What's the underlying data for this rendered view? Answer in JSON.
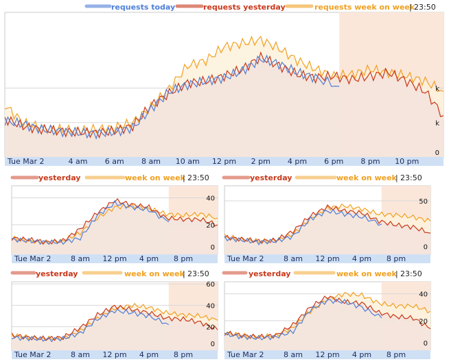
{
  "colors": {
    "today": "#4f7fd8",
    "yesterday": "#c8381a",
    "week": "#f0a020",
    "yesterday_fill": "#f3e3dc",
    "week_fill": "#fdf1dc",
    "future_fill": "#fbe7da",
    "axis_bar": "#cfe0f5",
    "grid": "#d8d8d8",
    "frame": "#c8c8c8"
  },
  "main_legend": {
    "today": "requests today",
    "yesterday": "requests yesterday",
    "week": "requests week on week",
    "time": "23:50"
  },
  "small_legend": {
    "yesterday": "yesterday",
    "week": "week on week",
    "time": "23:50"
  },
  "chart_data": [
    {
      "type": "line",
      "id": "main",
      "x_tick_labels": [
        "Tue Mar 2",
        "4 am",
        "6 am",
        "8 am",
        "10 am",
        "12 pm",
        "2 pm",
        "4 pm",
        "6 pm",
        "8 pm",
        "10 pm"
      ],
      "x_tick_hours": [
        0,
        4,
        6,
        8,
        10,
        12,
        14,
        16,
        18,
        20,
        22
      ],
      "y_tick_labels": [
        "0",
        "k",
        "k"
      ],
      "y_tick_values": [
        0,
        1,
        2
      ],
      "ylim": [
        0,
        4.2
      ],
      "xlim": [
        0,
        24
      ],
      "now_hour": 18.3,
      "series": [
        {
          "key": "today",
          "name": "requests today",
          "x": [
            0,
            1,
            2,
            3,
            4,
            5,
            6,
            7,
            8,
            9,
            10,
            11,
            12,
            13,
            14,
            15,
            16,
            17,
            18.3
          ],
          "y": [
            1.05,
            0.95,
            0.8,
            0.75,
            0.7,
            0.68,
            0.72,
            0.85,
            1.4,
            1.9,
            2.1,
            2.2,
            2.3,
            2.5,
            2.85,
            2.7,
            2.45,
            2.3,
            2.05
          ]
        },
        {
          "key": "yesterday",
          "name": "requests yesterday",
          "x": [
            0,
            1,
            2,
            3,
            4,
            5,
            6,
            7,
            8,
            9,
            10,
            11,
            12,
            13,
            14,
            15,
            16,
            17,
            18,
            19,
            20,
            21,
            22,
            23,
            24
          ],
          "y": [
            1.1,
            0.9,
            0.8,
            0.75,
            0.72,
            0.7,
            0.75,
            0.9,
            1.5,
            1.85,
            2.15,
            2.2,
            2.35,
            2.55,
            2.9,
            2.65,
            2.4,
            2.3,
            2.35,
            2.25,
            2.35,
            2.45,
            2.2,
            1.9,
            1.2
          ]
        },
        {
          "key": "week",
          "name": "requests week on week",
          "x": [
            0,
            1,
            2,
            3,
            4,
            5,
            6,
            7,
            8,
            9,
            10,
            11,
            12,
            13,
            14,
            15,
            16,
            17,
            18,
            19,
            20,
            21,
            22,
            23,
            24
          ],
          "y": [
            1.5,
            1.0,
            0.85,
            0.8,
            0.78,
            0.8,
            0.85,
            1.0,
            1.45,
            2.0,
            2.65,
            2.8,
            3.2,
            3.3,
            3.4,
            3.15,
            2.8,
            2.55,
            2.35,
            2.4,
            2.55,
            2.45,
            2.35,
            2.2,
            1.9
          ]
        }
      ]
    },
    {
      "type": "line",
      "id": "small-1",
      "x_tick_labels": [
        "Tue Mar 2",
        "8 am",
        "12 pm",
        "4 pm",
        "8 pm"
      ],
      "x_tick_hours": [
        0,
        8,
        12,
        16,
        20
      ],
      "y_tick_labels": [
        "0",
        "20",
        "40"
      ],
      "y_tick_values": [
        0,
        20,
        40
      ],
      "ylim": [
        -2,
        49
      ],
      "xlim": [
        0,
        24
      ],
      "now_hour": 18.3,
      "series": [
        {
          "key": "today",
          "x": [
            0,
            2,
            4,
            6,
            8,
            10,
            12,
            14,
            16,
            18.3
          ],
          "y": [
            9,
            8,
            7,
            7,
            10,
            27,
            36,
            33,
            31,
            22
          ]
        },
        {
          "key": "yesterday",
          "x": [
            0,
            2,
            4,
            6,
            8,
            10,
            12,
            14,
            16,
            18,
            20,
            22,
            24
          ],
          "y": [
            10,
            9,
            7,
            8,
            17,
            29,
            38,
            35,
            33,
            25,
            24,
            24,
            20
          ]
        },
        {
          "key": "week",
          "x": [
            0,
            2,
            4,
            6,
            8,
            10,
            12,
            14,
            16,
            18,
            20,
            22,
            24
          ],
          "y": [
            10,
            8,
            7,
            8,
            14,
            25,
            33,
            34,
            32,
            28,
            27,
            28,
            25
          ]
        }
      ]
    },
    {
      "type": "line",
      "id": "small-2",
      "x_tick_labels": [
        "Tue Mar 2",
        "8 am",
        "12 pm",
        "4 pm",
        "8 pm"
      ],
      "x_tick_hours": [
        0,
        8,
        12,
        16,
        20
      ],
      "y_tick_labels": [
        "0",
        "50"
      ],
      "y_tick_values": [
        0,
        50
      ],
      "ylim": [
        -3,
        65
      ],
      "xlim": [
        0,
        24
      ],
      "now_hour": 18.3,
      "series": [
        {
          "key": "today",
          "x": [
            0,
            2,
            4,
            6,
            8,
            10,
            12,
            14,
            16,
            18.3
          ],
          "y": [
            13,
            11,
            9,
            10,
            15,
            32,
            40,
            37,
            34,
            27
          ]
        },
        {
          "key": "yesterday",
          "x": [
            0,
            2,
            4,
            6,
            8,
            10,
            12,
            14,
            16,
            18,
            20,
            22,
            24
          ],
          "y": [
            14,
            12,
            10,
            11,
            20,
            35,
            44,
            40,
            38,
            30,
            26,
            24,
            18
          ]
        },
        {
          "key": "week",
          "x": [
            0,
            2,
            4,
            6,
            8,
            10,
            12,
            14,
            16,
            18,
            20,
            22,
            24
          ],
          "y": [
            15,
            12,
            10,
            11,
            17,
            32,
            43,
            45,
            42,
            37,
            36,
            34,
            30
          ]
        }
      ]
    },
    {
      "type": "line",
      "id": "small-3",
      "x_tick_labels": [
        "Tue Mar 2",
        "8 am",
        "12 pm",
        "4 pm",
        "8 pm"
      ],
      "x_tick_hours": [
        0,
        8,
        12,
        16,
        20
      ],
      "y_tick_labels": [
        "0",
        "20",
        "40",
        "60"
      ],
      "y_tick_values": [
        0,
        20,
        40,
        60
      ],
      "ylim": [
        -2,
        62
      ],
      "xlim": [
        0,
        24
      ],
      "now_hour": 18.3,
      "series": [
        {
          "key": "today",
          "x": [
            0,
            2,
            4,
            6,
            8,
            10,
            12,
            14,
            16,
            18.3
          ],
          "y": [
            10,
            9,
            8,
            9,
            14,
            27,
            35,
            33,
            30,
            22
          ]
        },
        {
          "key": "yesterday",
          "x": [
            0,
            2,
            4,
            6,
            8,
            10,
            12,
            14,
            16,
            18,
            20,
            22,
            24
          ],
          "y": [
            12,
            10,
            9,
            10,
            19,
            31,
            39,
            36,
            33,
            28,
            27,
            24,
            17
          ]
        },
        {
          "key": "week",
          "x": [
            0,
            2,
            4,
            6,
            8,
            10,
            12,
            14,
            16,
            18,
            20,
            22,
            24
          ],
          "y": [
            12,
            10,
            9,
            9,
            16,
            28,
            37,
            40,
            38,
            33,
            31,
            30,
            26
          ]
        }
      ]
    },
    {
      "type": "line",
      "id": "small-4",
      "x_tick_labels": [
        "Tue Mar 2",
        "8 am",
        "12 pm",
        "4 pm",
        "8 pm"
      ],
      "x_tick_hours": [
        0,
        8,
        12,
        16,
        20
      ],
      "y_tick_labels": [
        "0",
        "20",
        "40"
      ],
      "y_tick_values": [
        0,
        20,
        40
      ],
      "ylim": [
        -2,
        49
      ],
      "xlim": [
        0,
        24
      ],
      "now_hour": 18.3,
      "series": [
        {
          "key": "today",
          "x": [
            0,
            2,
            4,
            6,
            8,
            10,
            12,
            14,
            16,
            18.3
          ],
          "y": [
            10,
            8,
            7,
            8,
            12,
            28,
            35,
            34,
            30,
            22
          ]
        },
        {
          "key": "yesterday",
          "x": [
            0,
            2,
            4,
            6,
            8,
            10,
            12,
            14,
            16,
            18,
            20,
            22,
            24
          ],
          "y": [
            11,
            9,
            8,
            9,
            17,
            30,
            38,
            34,
            33,
            26,
            23,
            22,
            14
          ]
        },
        {
          "key": "week",
          "x": [
            0,
            2,
            4,
            6,
            8,
            10,
            12,
            14,
            16,
            18,
            20,
            22,
            24
          ],
          "y": [
            11,
            9,
            8,
            9,
            15,
            27,
            36,
            40,
            39,
            33,
            31,
            31,
            27
          ]
        }
      ]
    }
  ]
}
